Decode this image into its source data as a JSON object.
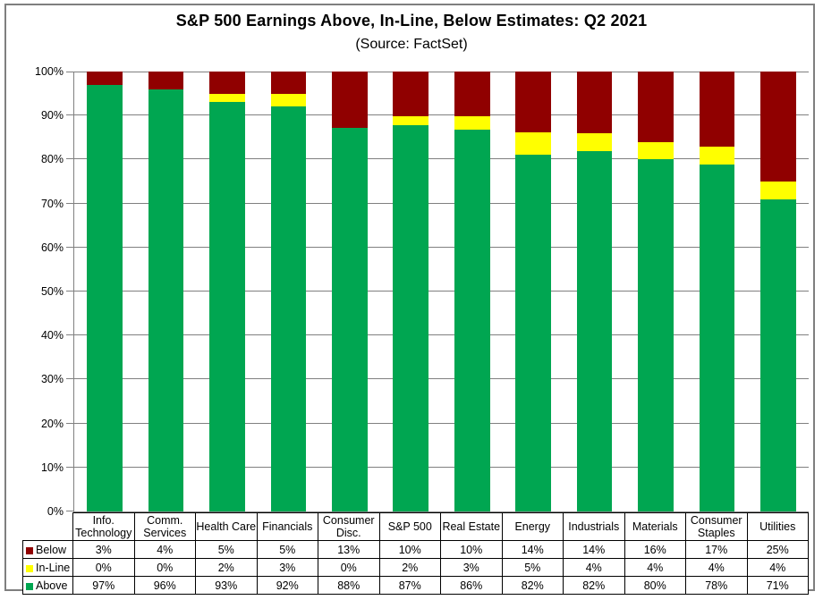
{
  "header": {
    "title": "S&P 500 Earnings Above, In-Line, Below Estimates: Q2 2021",
    "subtitle": "(Source: FactSet)"
  },
  "chart_data": {
    "type": "bar",
    "stacked": true,
    "title": "S&P 500 Earnings Above, In-Line, Below Estimates: Q2 2021",
    "subtitle": "(Source: FactSet)",
    "categories": [
      "Info. Technology",
      "Comm. Services",
      "Health Care",
      "Financials",
      "Consumer Disc.",
      "S&P 500",
      "Real Estate",
      "Energy",
      "Industrials",
      "Materials",
      "Consumer Staples",
      "Utilities"
    ],
    "series": [
      {
        "name": "Below",
        "color": "#900000",
        "values": [
          3,
          4,
          5,
          5,
          13,
          10,
          10,
          14,
          14,
          16,
          17,
          25
        ]
      },
      {
        "name": "In-Line",
        "color": "#ffff00",
        "values": [
          0,
          0,
          2,
          3,
          0,
          2,
          3,
          5,
          4,
          4,
          4,
          4
        ]
      },
      {
        "name": "Above",
        "color": "#00a651",
        "values": [
          97,
          96,
          93,
          92,
          88,
          87,
          86,
          82,
          82,
          80,
          78,
          71
        ]
      }
    ],
    "stack_order_bottom_to_top": [
      "Above",
      "In-Line",
      "Below"
    ],
    "value_suffix": "%",
    "ylim": [
      0,
      100
    ],
    "y_tick_labels": [
      "0%",
      "10%",
      "20%",
      "30%",
      "40%",
      "50%",
      "60%",
      "70%",
      "80%",
      "90%",
      "100%"
    ],
    "grid": true,
    "legend_position": "table-rows-left"
  },
  "colors": {
    "below": "#900000",
    "inline": "#ffff00",
    "above": "#00a651",
    "gridline": "#808080",
    "axis": "#808080",
    "frame_border": "#7f7f7f",
    "table_border": "#000000",
    "background": "#ffffff"
  }
}
